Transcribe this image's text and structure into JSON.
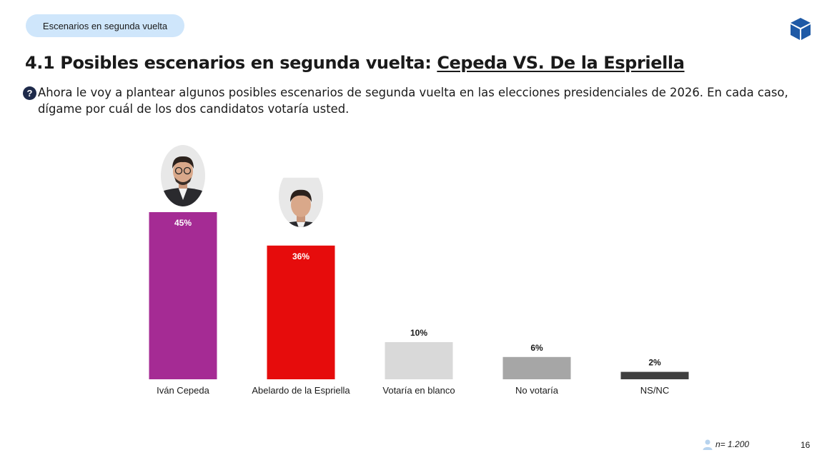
{
  "header": {
    "section_pill": "Escenarios en segunda vuelta",
    "title_prefix": "4.1 Posibles escenarios en segunda vuelta: ",
    "title_underlined": "Cepeda VS. De la Espriella",
    "question": "Ahora le voy a plantear algunos posibles escenarios de segunda vuelta en las elecciones presidenciales de 2026. En cada caso, dígame por cuál de los dos candidatos votaría usted."
  },
  "icons": {
    "logo": "cube-logo-icon",
    "question": "question-mark-icon",
    "sample": "person-icon"
  },
  "footer": {
    "sample_size": "n= 1.200",
    "page_number": "16"
  },
  "chart_data": {
    "type": "bar",
    "categories": [
      "Iván Cepeda",
      "Abelardo de la Espriella",
      "Votaría en blanco",
      "No votaría",
      "NS/NC"
    ],
    "values": [
      45,
      36,
      10,
      6,
      2
    ],
    "value_labels": [
      "45%",
      "36%",
      "10%",
      "6%",
      "2%"
    ],
    "colors": [
      "#a52b94",
      "#e60c0c",
      "#d9d9d9",
      "#a6a6a6",
      "#404040"
    ],
    "label_inside": [
      true,
      true,
      false,
      false,
      false
    ],
    "photos": [
      "candidate-photo-ivan-cepeda",
      "candidate-photo-abelardo-de-la-espriella",
      null,
      null,
      null
    ],
    "ylim": [
      0,
      45
    ],
    "title": "",
    "xlabel": "",
    "ylabel": "",
    "grid": false,
    "legend": "none"
  }
}
